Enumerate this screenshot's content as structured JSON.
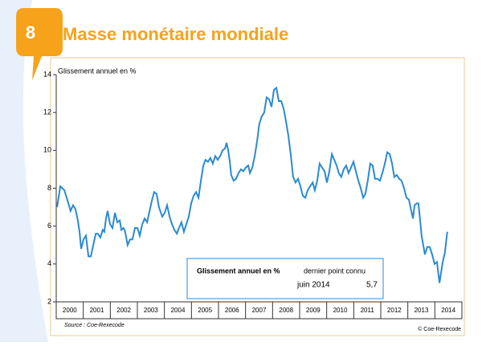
{
  "header": {
    "number": "8",
    "title": "Masse monétaire mondiale"
  },
  "chart_data": {
    "type": "line",
    "y_label": "Glissement annuel en %",
    "color": "#2a8ad4",
    "categories": [
      "2000",
      "2001",
      "2002",
      "2003",
      "2004",
      "2005",
      "2006",
      "2007",
      "2008",
      "2009",
      "2010",
      "2011",
      "2012",
      "2013",
      "2014"
    ],
    "xlim": [
      2000,
      2015
    ],
    "ylim": [
      2,
      14
    ],
    "yticks": [
      2,
      4,
      6,
      8,
      10,
      12,
      14
    ],
    "x": [
      2000.03,
      2000.15,
      2000.3,
      2000.45,
      2000.53,
      2000.62,
      2000.71,
      2000.8,
      2000.86,
      2000.92,
      2001.01,
      2001.1,
      2001.19,
      2001.28,
      2001.37,
      2001.46,
      2001.54,
      2001.63,
      2001.72,
      2001.78,
      2001.84,
      2001.9,
      2001.99,
      2002.08,
      2002.17,
      2002.26,
      2002.35,
      2002.41,
      2002.49,
      2002.55,
      2002.64,
      2002.73,
      2002.82,
      2002.91,
      2003.0,
      2003.09,
      2003.18,
      2003.27,
      2003.36,
      2003.45,
      2003.53,
      2003.62,
      2003.71,
      2003.8,
      2003.92,
      2004.01,
      2004.1,
      2004.19,
      2004.28,
      2004.37,
      2004.46,
      2004.54,
      2004.63,
      2004.72,
      2004.81,
      2004.9,
      2004.99,
      2005.08,
      2005.17,
      2005.26,
      2005.35,
      2005.44,
      2005.52,
      2005.61,
      2005.7,
      2005.79,
      2005.88,
      2005.97,
      2006.06,
      2006.15,
      2006.24,
      2006.3,
      2006.36,
      2006.42,
      2006.47,
      2006.56,
      2006.65,
      2006.74,
      2006.83,
      2006.92,
      2007.01,
      2007.1,
      2007.16,
      2007.25,
      2007.34,
      2007.43,
      2007.51,
      2007.6,
      2007.69,
      2007.78,
      2007.87,
      2007.96,
      2008.05,
      2008.14,
      2008.23,
      2008.32,
      2008.41,
      2008.5,
      2008.58,
      2008.67,
      2008.76,
      2008.85,
      2008.94,
      2009.03,
      2009.12,
      2009.21,
      2009.3,
      2009.39,
      2009.48,
      2009.56,
      2009.65,
      2009.74,
      2009.83,
      2009.92,
      2010.01,
      2010.1,
      2010.19,
      2010.28,
      2010.37,
      2010.45,
      2010.54,
      2010.63,
      2010.72,
      2010.81,
      2010.9,
      2010.99,
      2011.08,
      2011.17,
      2011.26,
      2011.35,
      2011.43,
      2011.52,
      2011.61,
      2011.7,
      2011.79,
      2011.88,
      2011.97,
      2012.06,
      2012.15,
      2012.24,
      2012.33,
      2012.42,
      2012.5,
      2012.59,
      2012.68,
      2012.77,
      2012.86,
      2012.95,
      2013.04,
      2013.13,
      2013.19,
      2013.25,
      2013.33,
      2013.39,
      2013.45,
      2013.51,
      2013.57,
      2013.63,
      2013.72,
      2013.81,
      2013.9,
      2013.99,
      2014.08,
      2014.17,
      2014.29,
      2014.37,
      2014.46
    ],
    "values": [
      7.0,
      8.1,
      7.9,
      7.2,
      6.8,
      7.1,
      6.9,
      6.3,
      5.7,
      4.8,
      5.3,
      5.5,
      4.4,
      4.4,
      5.0,
      5.6,
      5.6,
      5.4,
      5.8,
      5.7,
      6.4,
      6.8,
      6.1,
      5.9,
      6.7,
      6.2,
      6.3,
      5.8,
      5.9,
      5.7,
      5.0,
      5.3,
      5.3,
      5.9,
      5.9,
      5.5,
      6.1,
      6.4,
      6.2,
      6.8,
      7.3,
      7.8,
      7.7,
      7.0,
      6.5,
      6.7,
      7.1,
      6.5,
      6.1,
      5.8,
      5.6,
      5.9,
      6.2,
      5.7,
      6.1,
      6.5,
      7.2,
      7.6,
      7.8,
      7.5,
      8.4,
      9.2,
      9.5,
      9.4,
      9.6,
      9.3,
      9.7,
      9.5,
      9.7,
      10.0,
      10.1,
      10.4,
      10.0,
      9.4,
      8.7,
      8.4,
      8.5,
      8.8,
      9.0,
      8.9,
      9.1,
      9.2,
      8.8,
      9.1,
      9.7,
      10.5,
      11.4,
      11.8,
      12.0,
      12.8,
      12.7,
      12.3,
      13.2,
      13.3,
      12.6,
      12.6,
      12.2,
      11.5,
      10.8,
      9.8,
      8.6,
      8.3,
      8.5,
      8.1,
      7.6,
      7.5,
      7.9,
      8.1,
      8.3,
      7.9,
      8.4,
      9.3,
      9.1,
      8.9,
      8.3,
      8.9,
      9.8,
      9.5,
      9.2,
      8.8,
      8.6,
      9.0,
      9.2,
      8.8,
      9.1,
      9.4,
      8.9,
      8.4,
      8.0,
      7.5,
      7.7,
      8.4,
      9.3,
      9.2,
      8.5,
      8.5,
      8.4,
      8.8,
      9.3,
      9.9,
      9.8,
      9.3,
      8.6,
      8.7,
      8.5,
      8.4,
      8.0,
      7.5,
      7.4,
      6.8,
      6.4,
      7.1,
      7.2,
      7.2,
      6.4,
      5.5,
      5.0,
      4.5,
      4.9,
      4.9,
      4.5,
      4.0,
      4.1,
      3.0,
      4.1,
      4.6,
      5.7
    ],
    "inset": {
      "label": "Glissement annuel en %",
      "heading": "dernier point connu",
      "date": "juin 2014",
      "value": "5,7"
    },
    "source": "Source : Coe-Rexecode",
    "copyright": "© Coe-Rexecode"
  }
}
